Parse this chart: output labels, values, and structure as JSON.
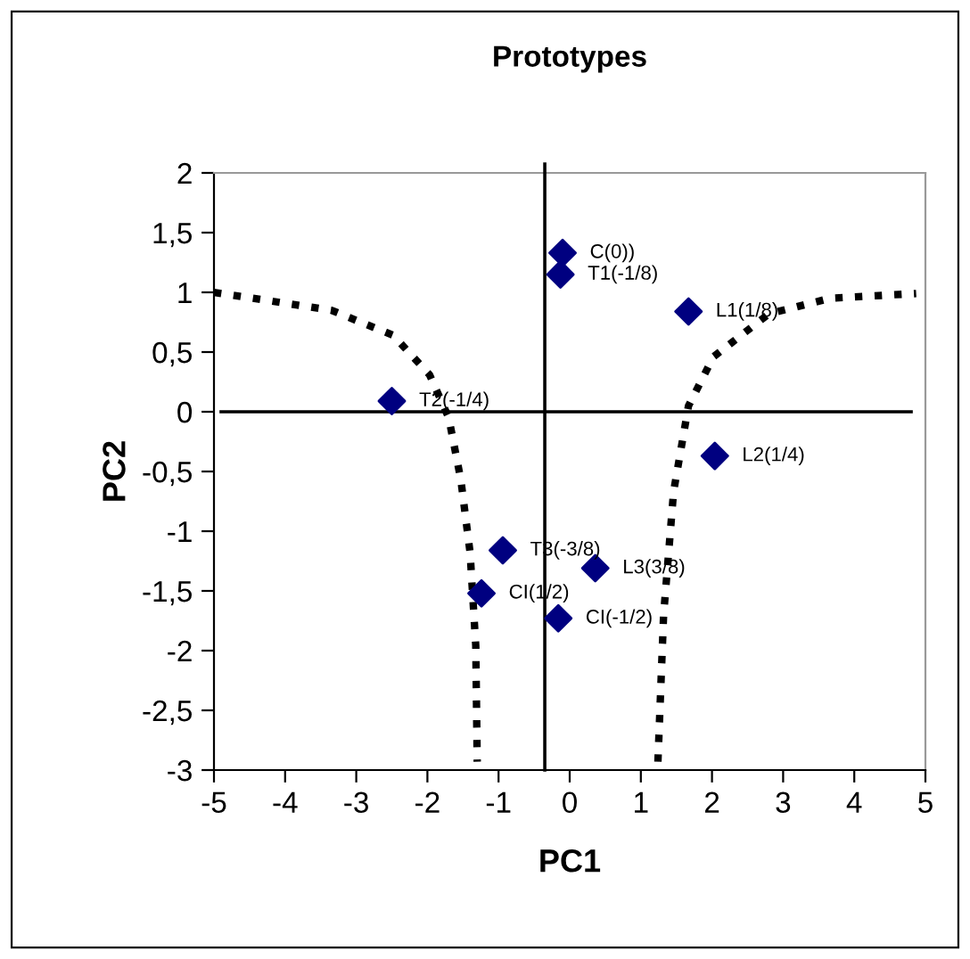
{
  "chart_data": {
    "type": "scatter",
    "title": "Prototypes",
    "xlabel": "PC1",
    "ylabel": "PC2",
    "xlim": [
      -5,
      5
    ],
    "ylim": [
      -3,
      2
    ],
    "xticks": [
      {
        "value": -5,
        "label": "-5"
      },
      {
        "value": -4,
        "label": "-4"
      },
      {
        "value": -3,
        "label": "-3"
      },
      {
        "value": -2,
        "label": "-2"
      },
      {
        "value": -1,
        "label": "-1"
      },
      0,
      1,
      2,
      3,
      4,
      5
    ],
    "yticks": [
      {
        "value": -3,
        "label": "-3"
      },
      {
        "value": -2.5,
        "label": "-2,5"
      },
      {
        "value": -2,
        "label": "-2"
      },
      {
        "value": -1.5,
        "label": "-1,5"
      },
      {
        "value": -1,
        "label": "-1"
      },
      {
        "value": -0.5,
        "label": "-0,5"
      },
      0,
      {
        "value": 0.5,
        "label": "0,5"
      },
      1,
      {
        "value": 1.5,
        "label": "1,5"
      },
      2
    ],
    "grid": false,
    "legend": false,
    "series": [
      {
        "color": "#000080",
        "marker": "diamond",
        "x": [
          -0.1,
          -0.13,
          1.67,
          -2.5,
          2.04,
          -0.94,
          0.36,
          -1.24,
          -0.16
        ],
        "values": [
          1.33,
          1.15,
          0.84,
          0.09,
          -0.37,
          -1.16,
          -1.31,
          -1.52,
          -1.73
        ]
      },
      {
        "type": "line",
        "color": "#000000",
        "line_style": "dotted",
        "marker": "none",
        "x": [
          -5,
          -3.35,
          -2.48,
          -1.97,
          -1.7,
          -1.53,
          -1.4,
          -1.32,
          -1.3
        ],
        "values": [
          1,
          0.85,
          0.64,
          0.31,
          -0.05,
          -0.57,
          -1.18,
          -1.96,
          -2.93
        ]
      },
      {
        "type": "line",
        "color": "#000000",
        "line_style": "dotted",
        "marker": "none",
        "x": [
          1.24,
          1.32,
          1.46,
          1.67,
          2.02,
          2.8,
          3.66,
          4.87
        ],
        "values": [
          -2.93,
          -1.7,
          -0.67,
          0.05,
          0.46,
          0.82,
          0.95,
          0.99
        ]
      }
    ],
    "ref_lines": [
      {
        "axis": "x",
        "value": -0.35,
        "color": "#000000"
      },
      {
        "axis": "y",
        "value": 0,
        "color": "#000000"
      }
    ],
    "annotations": [
      {
        "text": "C(0))",
        "x": -0.1,
        "y": 1.33
      },
      {
        "text": "T1(-1/8)",
        "x": -0.13,
        "y": 1.15
      },
      {
        "text": "L1(1/8)",
        "x": 1.67,
        "y": 0.84
      },
      {
        "text": "T2(-1/4)",
        "x": -2.5,
        "y": 0.09
      },
      {
        "text": "L2(1/4)",
        "x": 2.04,
        "y": -0.37
      },
      {
        "text": "T3(-3/8)",
        "x": -0.94,
        "y": -1.16
      },
      {
        "text": "L3(3/8)",
        "x": 0.36,
        "y": -1.31
      },
      {
        "text": "CI(1/2)",
        "x": -1.24,
        "y": -1.52
      },
      {
        "text": "CI(-1/2)",
        "x": -0.16,
        "y": -1.73
      }
    ]
  }
}
